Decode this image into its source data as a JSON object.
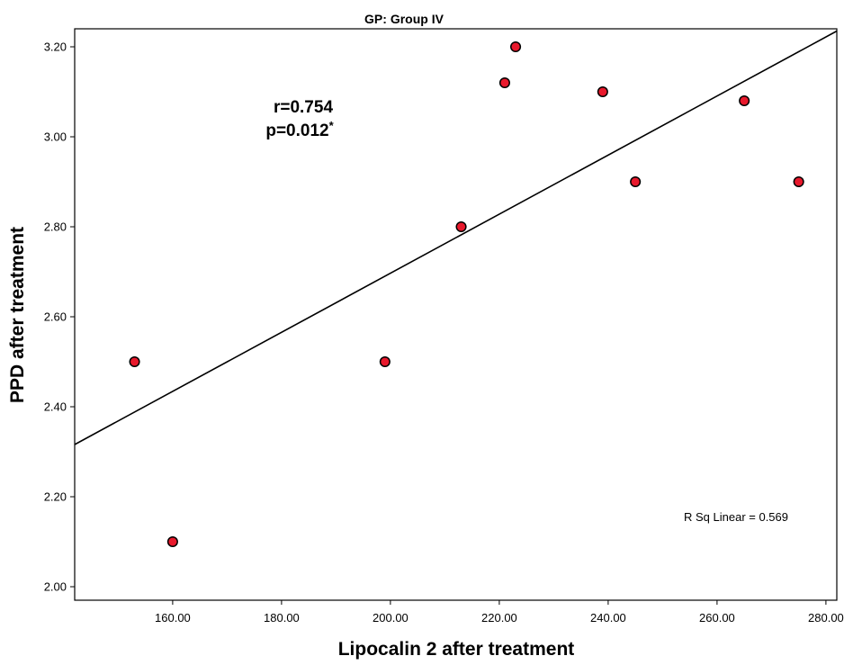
{
  "chart_data": {
    "type": "scatter",
    "title": "GP: Group IV",
    "xlabel": "Lipocalin 2 after treatment",
    "ylabel": "PPD after treatment",
    "xlim": [
      142,
      282
    ],
    "ylim": [
      1.97,
      3.24
    ],
    "x_ticks": [
      "160.00",
      "180.00",
      "200.00",
      "220.00",
      "240.00",
      "260.00",
      "280.00"
    ],
    "y_ticks": [
      "2.00",
      "2.20",
      "2.40",
      "2.60",
      "2.80",
      "3.00",
      "3.20"
    ],
    "points": [
      {
        "x": 153,
        "y": 2.5
      },
      {
        "x": 160,
        "y": 2.1
      },
      {
        "x": 199,
        "y": 2.5
      },
      {
        "x": 213,
        "y": 2.8
      },
      {
        "x": 221,
        "y": 3.12
      },
      {
        "x": 223,
        "y": 3.2
      },
      {
        "x": 239,
        "y": 3.1
      },
      {
        "x": 245,
        "y": 2.9
      },
      {
        "x": 265,
        "y": 3.08
      },
      {
        "x": 275,
        "y": 2.9
      }
    ],
    "fit_line": {
      "x": [
        142,
        282
      ],
      "y": [
        2.316,
        3.235
      ]
    },
    "annotations": {
      "r": "r=0.754",
      "p": "p=0.012",
      "p_mark": "*",
      "rsq": "R Sq Linear = 0.569"
    },
    "grid": false,
    "marker_color": "#e8192c",
    "line_color": "#000000"
  }
}
